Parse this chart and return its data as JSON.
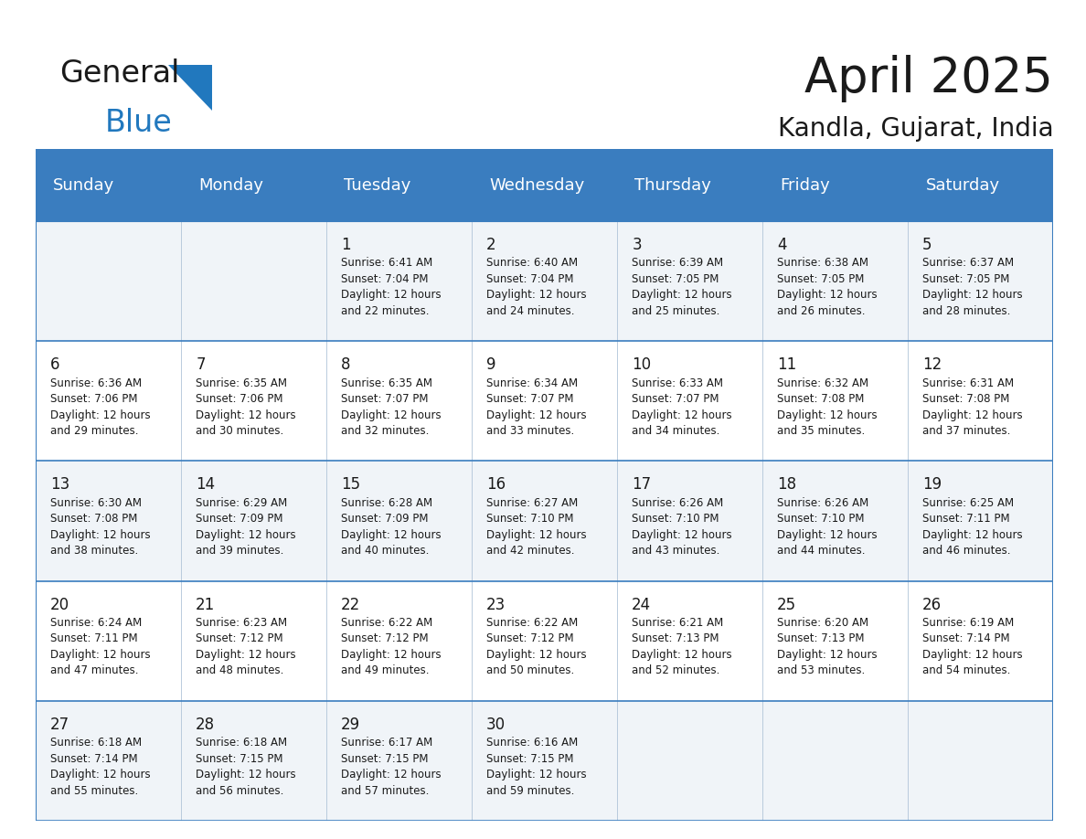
{
  "title": "April 2025",
  "subtitle": "Kandla, Gujarat, India",
  "header_bg": "#3a7dbf",
  "header_text": "#ffffff",
  "row_bg_light": "#f0f4f8",
  "row_bg_white": "#ffffff",
  "grid_line_color": "#3a7dbf",
  "cell_line_color": "#b0c4d8",
  "day_headers": [
    "Sunday",
    "Monday",
    "Tuesday",
    "Wednesday",
    "Thursday",
    "Friday",
    "Saturday"
  ],
  "weeks": [
    [
      {
        "day": null,
        "text": ""
      },
      {
        "day": null,
        "text": ""
      },
      {
        "day": 1,
        "text": "Sunrise: 6:41 AM\nSunset: 7:04 PM\nDaylight: 12 hours\nand 22 minutes."
      },
      {
        "day": 2,
        "text": "Sunrise: 6:40 AM\nSunset: 7:04 PM\nDaylight: 12 hours\nand 24 minutes."
      },
      {
        "day": 3,
        "text": "Sunrise: 6:39 AM\nSunset: 7:05 PM\nDaylight: 12 hours\nand 25 minutes."
      },
      {
        "day": 4,
        "text": "Sunrise: 6:38 AM\nSunset: 7:05 PM\nDaylight: 12 hours\nand 26 minutes."
      },
      {
        "day": 5,
        "text": "Sunrise: 6:37 AM\nSunset: 7:05 PM\nDaylight: 12 hours\nand 28 minutes."
      }
    ],
    [
      {
        "day": 6,
        "text": "Sunrise: 6:36 AM\nSunset: 7:06 PM\nDaylight: 12 hours\nand 29 minutes."
      },
      {
        "day": 7,
        "text": "Sunrise: 6:35 AM\nSunset: 7:06 PM\nDaylight: 12 hours\nand 30 minutes."
      },
      {
        "day": 8,
        "text": "Sunrise: 6:35 AM\nSunset: 7:07 PM\nDaylight: 12 hours\nand 32 minutes."
      },
      {
        "day": 9,
        "text": "Sunrise: 6:34 AM\nSunset: 7:07 PM\nDaylight: 12 hours\nand 33 minutes."
      },
      {
        "day": 10,
        "text": "Sunrise: 6:33 AM\nSunset: 7:07 PM\nDaylight: 12 hours\nand 34 minutes."
      },
      {
        "day": 11,
        "text": "Sunrise: 6:32 AM\nSunset: 7:08 PM\nDaylight: 12 hours\nand 35 minutes."
      },
      {
        "day": 12,
        "text": "Sunrise: 6:31 AM\nSunset: 7:08 PM\nDaylight: 12 hours\nand 37 minutes."
      }
    ],
    [
      {
        "day": 13,
        "text": "Sunrise: 6:30 AM\nSunset: 7:08 PM\nDaylight: 12 hours\nand 38 minutes."
      },
      {
        "day": 14,
        "text": "Sunrise: 6:29 AM\nSunset: 7:09 PM\nDaylight: 12 hours\nand 39 minutes."
      },
      {
        "day": 15,
        "text": "Sunrise: 6:28 AM\nSunset: 7:09 PM\nDaylight: 12 hours\nand 40 minutes."
      },
      {
        "day": 16,
        "text": "Sunrise: 6:27 AM\nSunset: 7:10 PM\nDaylight: 12 hours\nand 42 minutes."
      },
      {
        "day": 17,
        "text": "Sunrise: 6:26 AM\nSunset: 7:10 PM\nDaylight: 12 hours\nand 43 minutes."
      },
      {
        "day": 18,
        "text": "Sunrise: 6:26 AM\nSunset: 7:10 PM\nDaylight: 12 hours\nand 44 minutes."
      },
      {
        "day": 19,
        "text": "Sunrise: 6:25 AM\nSunset: 7:11 PM\nDaylight: 12 hours\nand 46 minutes."
      }
    ],
    [
      {
        "day": 20,
        "text": "Sunrise: 6:24 AM\nSunset: 7:11 PM\nDaylight: 12 hours\nand 47 minutes."
      },
      {
        "day": 21,
        "text": "Sunrise: 6:23 AM\nSunset: 7:12 PM\nDaylight: 12 hours\nand 48 minutes."
      },
      {
        "day": 22,
        "text": "Sunrise: 6:22 AM\nSunset: 7:12 PM\nDaylight: 12 hours\nand 49 minutes."
      },
      {
        "day": 23,
        "text": "Sunrise: 6:22 AM\nSunset: 7:12 PM\nDaylight: 12 hours\nand 50 minutes."
      },
      {
        "day": 24,
        "text": "Sunrise: 6:21 AM\nSunset: 7:13 PM\nDaylight: 12 hours\nand 52 minutes."
      },
      {
        "day": 25,
        "text": "Sunrise: 6:20 AM\nSunset: 7:13 PM\nDaylight: 12 hours\nand 53 minutes."
      },
      {
        "day": 26,
        "text": "Sunrise: 6:19 AM\nSunset: 7:14 PM\nDaylight: 12 hours\nand 54 minutes."
      }
    ],
    [
      {
        "day": 27,
        "text": "Sunrise: 6:18 AM\nSunset: 7:14 PM\nDaylight: 12 hours\nand 55 minutes."
      },
      {
        "day": 28,
        "text": "Sunrise: 6:18 AM\nSunset: 7:15 PM\nDaylight: 12 hours\nand 56 minutes."
      },
      {
        "day": 29,
        "text": "Sunrise: 6:17 AM\nSunset: 7:15 PM\nDaylight: 12 hours\nand 57 minutes."
      },
      {
        "day": 30,
        "text": "Sunrise: 6:16 AM\nSunset: 7:15 PM\nDaylight: 12 hours\nand 59 minutes."
      },
      {
        "day": null,
        "text": ""
      },
      {
        "day": null,
        "text": ""
      },
      {
        "day": null,
        "text": ""
      }
    ]
  ],
  "logo_color_general": "#1a1a1a",
  "logo_color_blue": "#2178be",
  "title_fontsize": 38,
  "subtitle_fontsize": 20,
  "header_fontsize": 13,
  "day_num_fontsize": 12,
  "cell_text_fontsize": 8.5
}
